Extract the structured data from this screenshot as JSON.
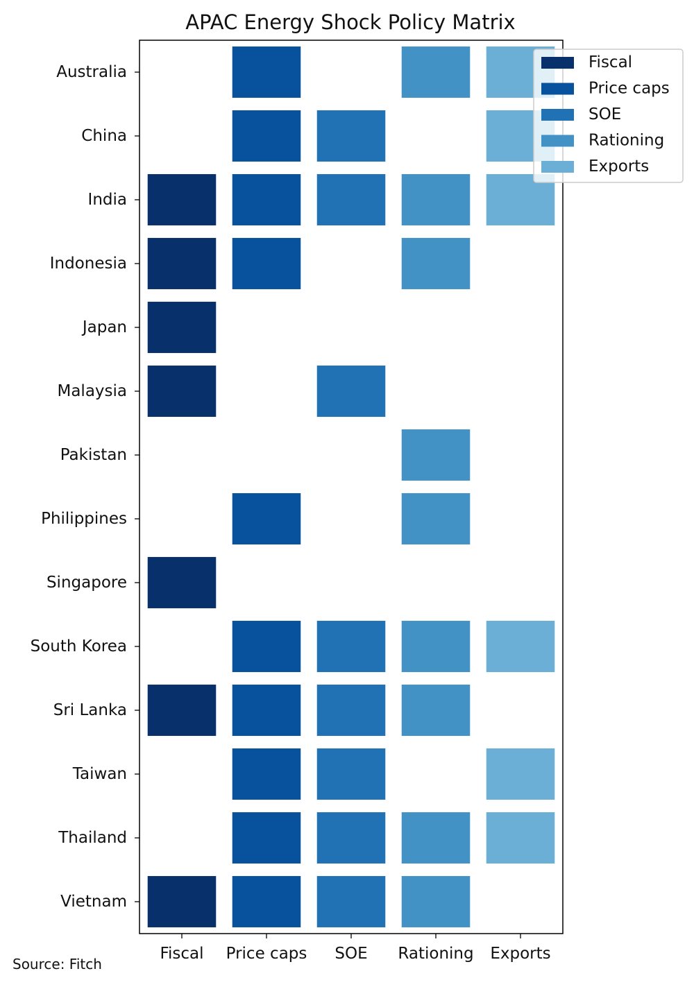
{
  "chart_data": {
    "type": "heatmap",
    "title": "APAC Energy Shock Policy Matrix",
    "xlabel": "",
    "ylabel": "",
    "categories": [
      "Fiscal",
      "Price caps",
      "SOE",
      "Rationing",
      "Exports"
    ],
    "countries": [
      "Australia",
      "China",
      "India",
      "Indonesia",
      "Japan",
      "Malaysia",
      "Pakistan",
      "Philippines",
      "Singapore",
      "South Korea",
      "Sri Lanka",
      "Taiwan",
      "Thailand",
      "Vietnam"
    ],
    "matrix": [
      [
        0,
        1,
        0,
        1,
        1
      ],
      [
        0,
        1,
        1,
        0,
        1
      ],
      [
        1,
        1,
        1,
        1,
        1
      ],
      [
        1,
        1,
        0,
        1,
        0
      ],
      [
        1,
        0,
        0,
        0,
        0
      ],
      [
        1,
        0,
        1,
        0,
        0
      ],
      [
        0,
        0,
        0,
        1,
        0
      ],
      [
        0,
        1,
        0,
        1,
        0
      ],
      [
        1,
        0,
        0,
        0,
        0
      ],
      [
        0,
        1,
        1,
        1,
        1
      ],
      [
        1,
        1,
        1,
        1,
        0
      ],
      [
        0,
        1,
        1,
        0,
        1
      ],
      [
        0,
        1,
        1,
        1,
        1
      ],
      [
        1,
        1,
        1,
        1,
        0
      ]
    ],
    "colors": [
      "#08306b",
      "#08519c",
      "#2171b5",
      "#4292c6",
      "#6baed6"
    ],
    "legend": {
      "placement": "top-right",
      "entries": [
        "Fiscal",
        "Price caps",
        "SOE",
        "Rationing",
        "Exports"
      ]
    },
    "grid": false
  },
  "footer": {
    "source": "Source: Fitch"
  }
}
